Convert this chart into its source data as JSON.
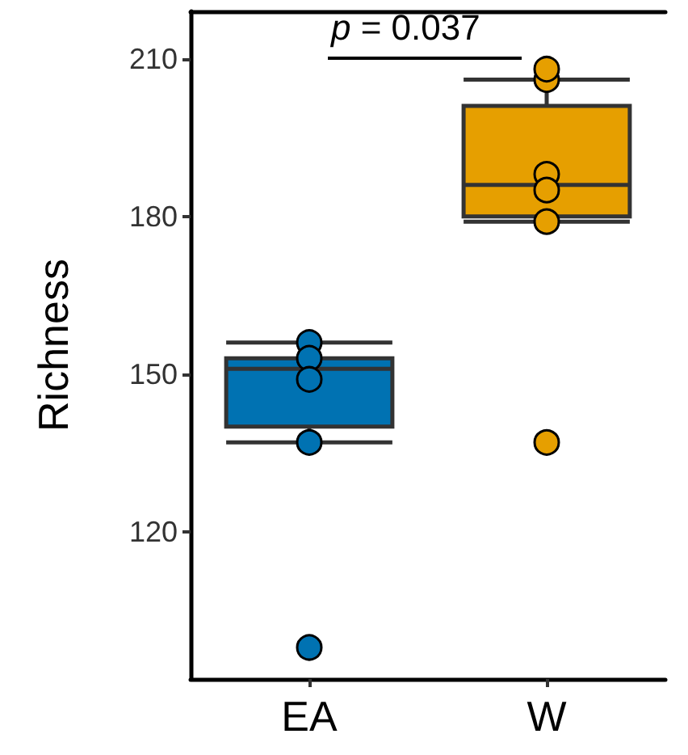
{
  "chart_data": {
    "type": "box",
    "ylabel": "Richness",
    "categories": [
      "EA",
      "W"
    ],
    "ylim": [
      92,
      219
    ],
    "yticks": [
      120,
      150,
      180,
      210
    ],
    "grid": false,
    "annotations": [
      "p = 0.037"
    ],
    "series": [
      {
        "colors": [
          "#0072b2",
          "#e69f00"
        ],
        "boxes": [
          {
            "low": 137,
            "q1": 140,
            "median": 151,
            "q3": 153,
            "high": 156
          },
          {
            "low": 179,
            "q1": 180,
            "median": 186,
            "q3": 201,
            "high": 206
          }
        ]
      },
      {
        "type": "scatter",
        "marker": "circle",
        "x": [
          "EA",
          "EA",
          "EA",
          "EA",
          "EA",
          "W",
          "W",
          "W",
          "W",
          "W",
          "W"
        ],
        "values": [
          156,
          153,
          149,
          137,
          98,
          206,
          208,
          188,
          185,
          179,
          137
        ],
        "colors": [
          "#0072b2",
          "#0072b2",
          "#0072b2",
          "#0072b2",
          "#0072b2",
          "#e69f00",
          "#e69f00",
          "#e69f00",
          "#e69f00",
          "#e69f00",
          "#e69f00"
        ]
      }
    ]
  }
}
